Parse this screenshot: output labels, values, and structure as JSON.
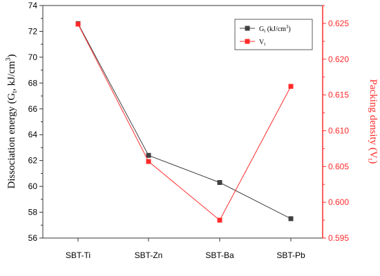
{
  "chart_data": {
    "type": "line",
    "categories": [
      "SBT-Ti",
      "SBT-Zn",
      "SBT-Ba",
      "SBT-Pb"
    ],
    "series": [
      {
        "name": "Gt (kJ/cm3)",
        "name_main": "G",
        "name_sub": "t",
        "name_rest": " (kJ/cm",
        "name_sup": "3",
        "name_close": ")",
        "axis": "left",
        "color": "#404040",
        "values": [
          72.6,
          62.4,
          60.3,
          57.5
        ]
      },
      {
        "name": "Vt",
        "name_main": "V",
        "name_sub": "t",
        "axis": "right",
        "color": "#ff2a2a",
        "values": [
          0.6249,
          0.6057,
          0.5975,
          0.6162
        ]
      }
    ],
    "yleft": {
      "label_main": "Dissociation energy (G",
      "label_sub": "t",
      "label_mid": ", kJ/cm",
      "label_sup": "3",
      "label_end": ")",
      "ylim": [
        56,
        74
      ],
      "ticks": [
        "56",
        "58",
        "60",
        "62",
        "64",
        "66",
        "68",
        "70",
        "72",
        "74"
      ]
    },
    "yright": {
      "label_main": "Packing density (V",
      "label_sub": "t",
      "label_end": ")",
      "ylim": [
        0.595,
        0.6275
      ],
      "ticks": [
        "0.595",
        "0.600",
        "0.605",
        "0.610",
        "0.615",
        "0.620",
        "0.625"
      ],
      "color": "#ff2a2a"
    },
    "legend_position": "top-right",
    "grid": false
  }
}
